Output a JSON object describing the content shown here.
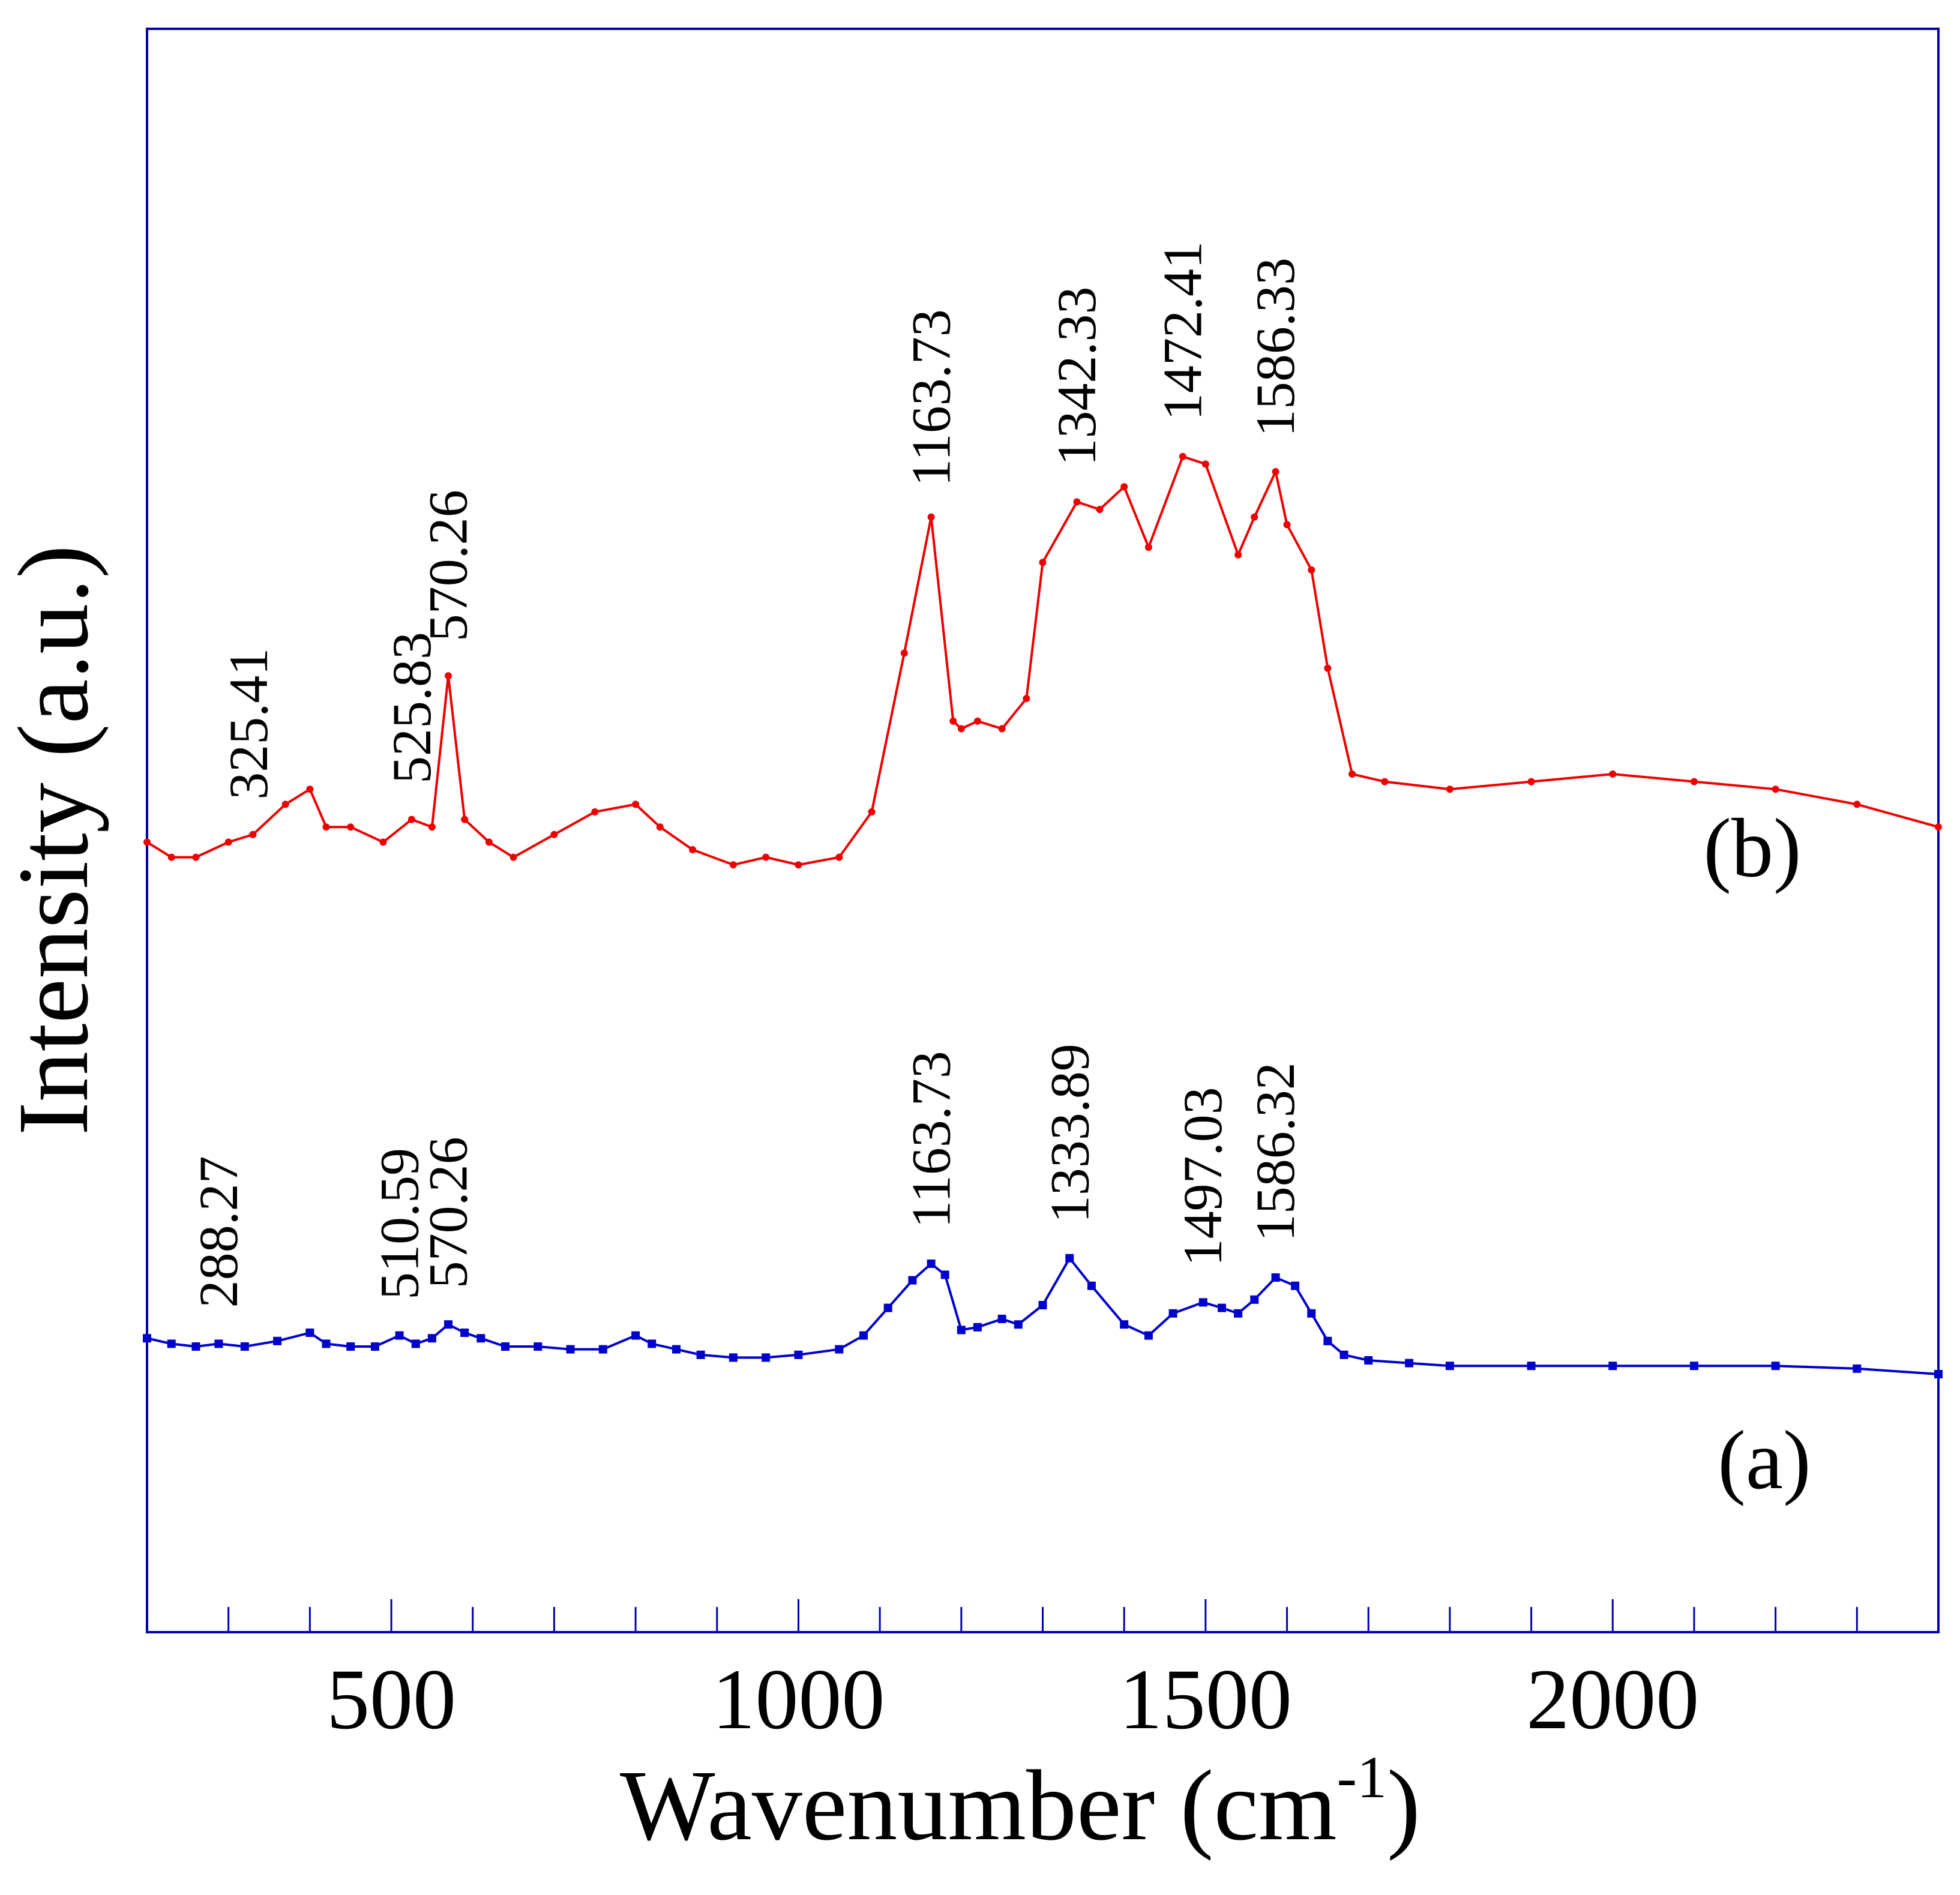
{
  "chart_data": {
    "type": "line",
    "title": "",
    "xlabel": "Wavenumber (cm",
    "xlabel_superscript": "-1",
    "xlabel_close": ")",
    "ylabel": "Intensity (a.u.)",
    "xlim": [
      200,
      2400
    ],
    "ylim": [
      0,
      100
    ],
    "x_ticks": [
      500,
      1000,
      1500,
      2000
    ],
    "x_tick_labels": [
      "500",
      "1000",
      "1500",
      "2000"
    ],
    "x_minor_ticks": [
      300,
      400,
      500,
      600,
      700,
      800,
      900,
      1000,
      1100,
      1200,
      1300,
      1400,
      1500,
      1600,
      1700,
      1800,
      1900,
      2000,
      2100,
      2200,
      2300
    ],
    "y_ticks_shown": false,
    "grid": false,
    "frame_color": "#0000aa",
    "series": [
      {
        "name": "(a)",
        "label": "(a)",
        "color": "#0000cc",
        "marker": "square",
        "x": [
          200,
          230,
          260,
          288,
          320,
          360,
          400,
          420,
          450,
          480,
          510,
          530,
          550,
          570,
          590,
          610,
          640,
          680,
          720,
          760,
          800,
          820,
          850,
          880,
          920,
          960,
          1000,
          1050,
          1080,
          1110,
          1140,
          1163,
          1180,
          1200,
          1220,
          1250,
          1270,
          1300,
          1333,
          1360,
          1400,
          1430,
          1460,
          1497,
          1520,
          1540,
          1560,
          1586,
          1610,
          1630,
          1650,
          1670,
          1700,
          1750,
          1800,
          1900,
          2000,
          2100,
          2200,
          2300,
          2400
        ],
        "y": [
          13,
          11,
          10,
          11,
          10,
          12,
          15,
          11,
          10,
          10,
          14,
          11,
          13,
          18,
          15,
          13,
          10,
          10,
          9,
          9,
          14,
          11,
          9,
          7,
          6,
          6,
          7,
          9,
          14,
          24,
          34,
          40,
          36,
          16,
          17,
          20,
          18,
          25,
          42,
          32,
          18,
          14,
          22,
          26,
          24,
          22,
          27,
          35,
          32,
          22,
          12,
          7,
          5,
          4,
          3,
          3,
          3,
          3,
          3,
          2,
          0
        ]
      },
      {
        "name": "(b)",
        "label": "(b)",
        "color": "#ee0000",
        "marker": "dot",
        "x": [
          200,
          230,
          260,
          300,
          330,
          370,
          400,
          420,
          450,
          490,
          525,
          550,
          570,
          590,
          620,
          650,
          700,
          750,
          800,
          830,
          870,
          920,
          960,
          1000,
          1050,
          1090,
          1130,
          1163,
          1190,
          1200,
          1220,
          1250,
          1280,
          1300,
          1342,
          1370,
          1400,
          1430,
          1472,
          1500,
          1540,
          1560,
          1586,
          1600,
          1630,
          1650,
          1680,
          1720,
          1800,
          1900,
          2000,
          2100,
          2200,
          2300,
          2400
        ],
        "y": [
          41,
          39,
          39,
          41,
          42,
          46,
          48,
          43,
          43,
          41,
          44,
          43,
          63,
          44,
          41,
          39,
          42,
          45,
          46,
          43,
          40,
          38,
          39,
          38,
          39,
          45,
          66,
          84,
          57,
          56,
          57,
          56,
          60,
          78,
          86,
          85,
          88,
          80,
          92,
          91,
          79,
          84,
          90,
          83,
          77,
          64,
          50,
          49,
          48,
          49,
          50,
          49,
          48,
          46,
          43
        ]
      }
    ],
    "annotations": [
      {
        "series": "(b)",
        "text": "325.41",
        "x": 325.41
      },
      {
        "series": "(b)",
        "text": "525.83",
        "x": 525.83
      },
      {
        "series": "(b)",
        "text": "570.26",
        "x": 570.26
      },
      {
        "series": "(b)",
        "text": "1163.73",
        "x": 1163.73
      },
      {
        "series": "(b)",
        "text": "1342.33",
        "x": 1342.33
      },
      {
        "series": "(b)",
        "text": "1472.41",
        "x": 1472.41
      },
      {
        "series": "(b)",
        "text": "1586.33",
        "x": 1586.33
      },
      {
        "series": "(a)",
        "text": "288.27",
        "x": 288.27
      },
      {
        "series": "(a)",
        "text": "510.59",
        "x": 510.59
      },
      {
        "series": "(a)",
        "text": "570.26",
        "x": 570.26
      },
      {
        "series": "(a)",
        "text": "1163.73",
        "x": 1163.73
      },
      {
        "series": "(a)",
        "text": "1333.89",
        "x": 1333.89
      },
      {
        "series": "(a)",
        "text": "1497.03",
        "x": 1497.03
      },
      {
        "series": "(a)",
        "text": "1586.32",
        "x": 1586.32
      }
    ]
  }
}
